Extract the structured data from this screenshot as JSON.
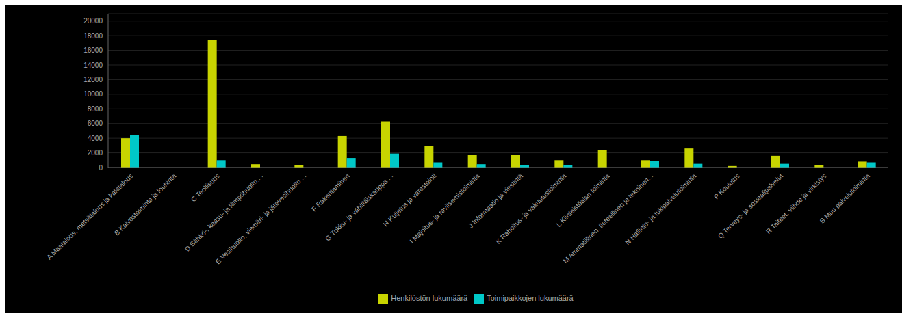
{
  "chart_data": {
    "type": "bar",
    "categories": [
      "A Maatalous, metsätalous ja kalatalous",
      "B Kaivostoiminta ja louhinta",
      "C Teollisuus",
      "D Sähkö-, kaasu- ja lämpöhuolto,...",
      "E Vesihuolto, viemäri- ja jätevesihuolto ...",
      "F Rakentaminen",
      "G Tukku- ja vähittäiskauppa ...",
      "H Kuljetus ja varastointi",
      "I Majoitus- ja ravitsemistoiminta",
      "J Informaatio ja viestintä",
      "K Rahoitus- ja vakuutustoiminta",
      "L Kiinteistöalan toiminta",
      "M Ammatillinen, tieteellinen ja tekninen...",
      "N Hallinto- ja tukipalvelutoiminta",
      "P Koulutus",
      "Q Terveys- ja sosiaalipalvelut",
      "R Taiteet, viihde ja virkistys",
      "S Muu palvelutoiminta"
    ],
    "series": [
      {
        "name": "Henkilöstön lukumäärä",
        "color": "#c8d400",
        "values": [
          4000,
          0,
          17400,
          450,
          350,
          4300,
          6300,
          2900,
          1700,
          1700,
          1000,
          2400,
          1000,
          2600,
          200,
          1600,
          350,
          800
        ]
      },
      {
        "name": "Toimipaikkojen lukumäärä",
        "color": "#00c8c8",
        "values": [
          4400,
          0,
          1000,
          0,
          0,
          1300,
          1900,
          700,
          450,
          350,
          350,
          0,
          900,
          500,
          0,
          500,
          0,
          700
        ]
      }
    ],
    "ylim": [
      0,
      21000
    ],
    "yticks": [
      0,
      2000,
      4000,
      6000,
      8000,
      10000,
      12000,
      14000,
      16000,
      18000,
      20000
    ],
    "grid": true,
    "legend": "bottom"
  }
}
